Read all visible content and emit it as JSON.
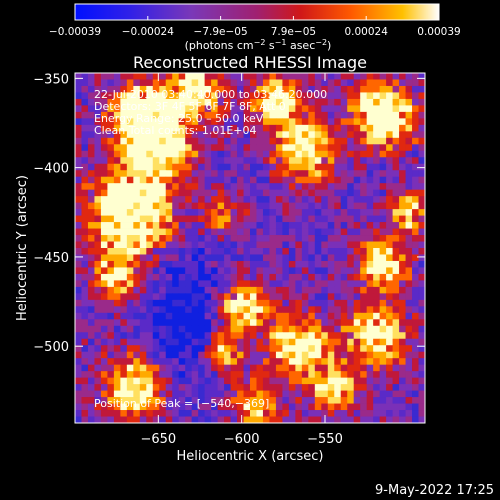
{
  "chart_data": {
    "type": "heatmap",
    "title": "Reconstructed RHESSI Image",
    "xlabel": "Heliocentric X (arcsec)",
    "ylabel": "Heliocentric Y (arcsec)",
    "xlim": [
      -700,
      -490
    ],
    "ylim": [
      -543,
      -347
    ],
    "x_ticks": [
      -650,
      -600,
      -550
    ],
    "x_tick_labels": [
      "−650",
      "−600",
      "−550"
    ],
    "y_ticks": [
      -350,
      -400,
      -450,
      -500
    ],
    "y_tick_labels": [
      "−350",
      "−400",
      "−450",
      "−500"
    ],
    "colorbar": {
      "colors": [
        "#0010ff",
        "#5a2ad8",
        "#8a3ab0",
        "#b02a5a",
        "#d01818",
        "#ff5a00",
        "#ffb000",
        "#ffffff"
      ],
      "tick_labels": [
        "−0.00039",
        "−0.00024",
        "−7.9e−05",
        "7.9e−05",
        "0.00024",
        "0.00039"
      ],
      "unit": "(photons cm",
      "unit_sup1": "−2",
      "unit_mid": " s",
      "unit_sup2": "−1",
      "unit_mid2": " asec",
      "unit_sup3": "−2",
      "unit_end": ")"
    },
    "annotations": {
      "time": "22-Jul-2010 03:40:40.000 to 03:46:20.000",
      "detectors": "Detectors: 3F 4F 5F 6F 7F 8F, Att 0",
      "energy": "Energy Range: 25.0 – 50.0 keV",
      "clean": "Clean     Total counts: 1.01E+04",
      "peak": "Position of Peak = [−540,−369]"
    },
    "peak": [
      -540,
      -369
    ],
    "palette": [
      "#1020e0",
      "#3a2ad0",
      "#5a2ac8",
      "#7a30b8",
      "#9a2a8a",
      "#c0183a",
      "#e02810",
      "#ff6600",
      "#ffaa00",
      "#ffe060",
      "#ffffd0"
    ]
  },
  "footer": {
    "date": "9-May-2022 17:25"
  }
}
